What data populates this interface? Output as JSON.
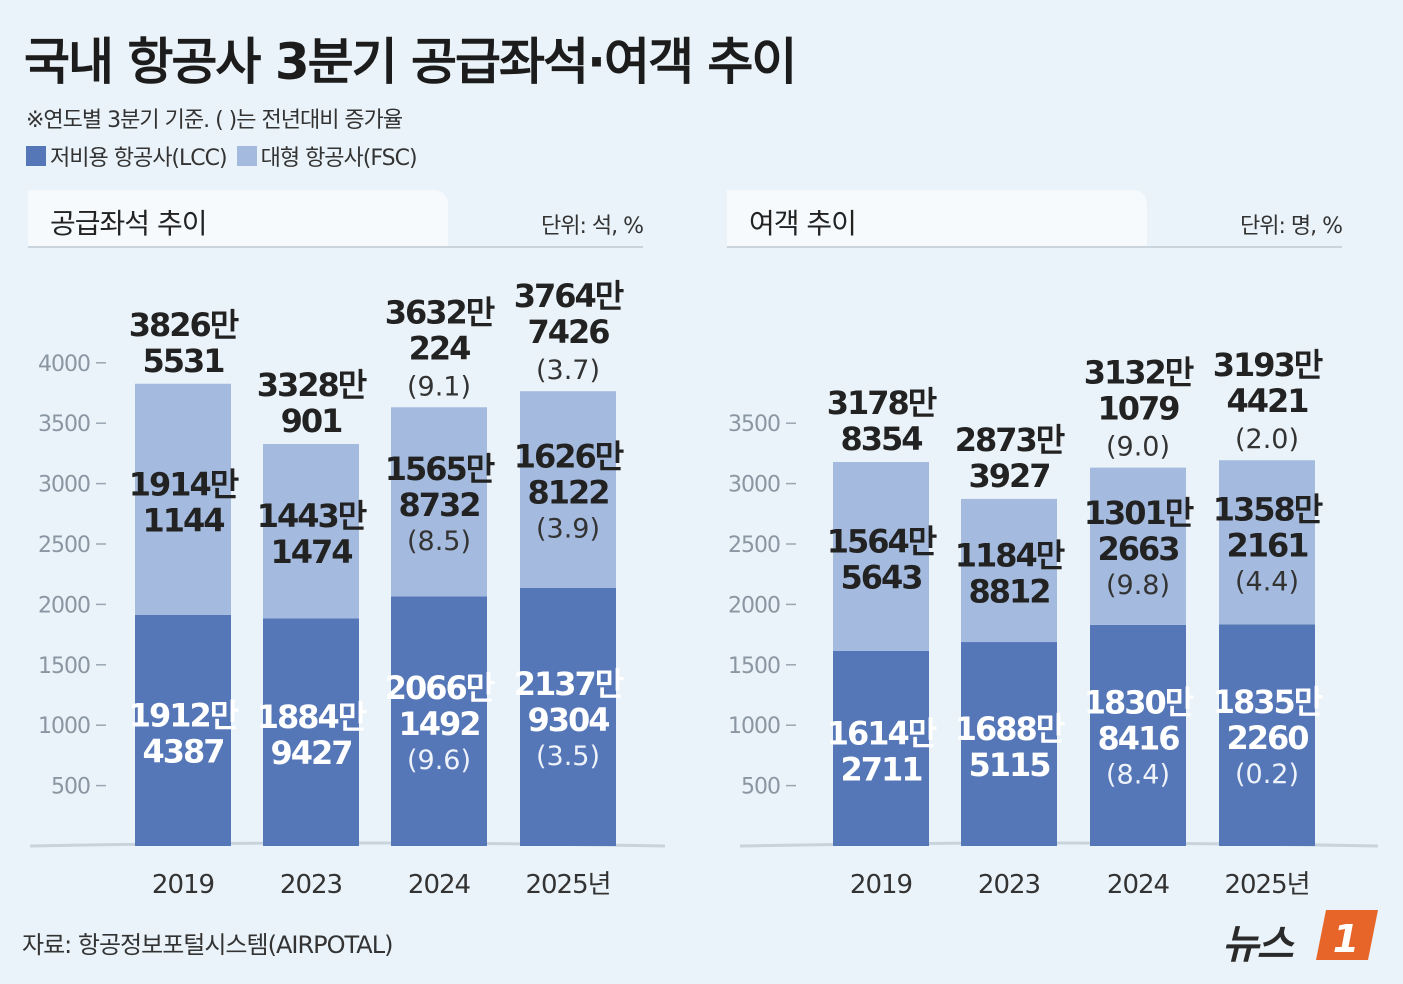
{
  "header": {
    "title": "국내 항공사 3분기 공급좌석·여객 추이",
    "subtitle": "※연도별 3분기 기준.  ( )는 전년대비 증가율"
  },
  "legend": [
    {
      "label": "저비용 항공사(LCC)",
      "color": "#5577b7"
    },
    {
      "label": "대형 항공사(FSC)",
      "color": "#a4bbdf"
    }
  ],
  "panels": [
    {
      "title": "공급좌석 추이",
      "unit": "단위: 석, %"
    },
    {
      "title": "여객 추이",
      "unit": "단위: 명, %"
    }
  ],
  "footer": {
    "source": "자료: 항공정보포털시스템(AIRPOTAL)",
    "logo_text": "뉴스",
    "logo_mark": "1"
  },
  "chart_data": [
    {
      "type": "bar",
      "stacked": true,
      "title": "공급좌석 추이",
      "unit": "단위: 석, %",
      "categories": [
        "2019",
        "2023",
        "2024",
        "2025년"
      ],
      "ylim": [
        0,
        4000
      ],
      "yticks": [
        500,
        1000,
        1500,
        2000,
        2500,
        3000,
        3500,
        4000
      ],
      "series": [
        {
          "name": "저비용 항공사(LCC)",
          "color": "#5577b7",
          "values": [
            1912.4387,
            1884.9427,
            2066.1492,
            2137.9304
          ],
          "labels": [
            [
              "1912만",
              "4387"
            ],
            [
              "1884만",
              "9427"
            ],
            [
              "2066만",
              "1492"
            ],
            [
              "2137만",
              "9304"
            ]
          ],
          "growth": [
            "",
            "",
            "(9.6)",
            "(3.5)"
          ]
        },
        {
          "name": "대형 항공사(FSC)",
          "color": "#a4bbdf",
          "values": [
            1914.1144,
            1443.1474,
            1565.8732,
            1626.8122
          ],
          "labels": [
            [
              "1914만",
              "1144"
            ],
            [
              "1443만",
              "1474"
            ],
            [
              "1565만",
              "8732"
            ],
            [
              "1626만",
              "8122"
            ]
          ],
          "growth": [
            "",
            "",
            "(8.5)",
            "(3.9)"
          ]
        }
      ],
      "totals": [
        3826.5531,
        3328.0901,
        3632.0224,
        3764.7426
      ],
      "total_labels": [
        [
          "3826만",
          "5531"
        ],
        [
          "3328만",
          "901"
        ],
        [
          "3632만",
          "224"
        ],
        [
          "3764만",
          "7426"
        ]
      ],
      "total_growth": [
        "",
        "",
        "(9.1)",
        "(3.7)"
      ]
    },
    {
      "type": "bar",
      "stacked": true,
      "title": "여객 추이",
      "unit": "단위: 명, %",
      "categories": [
        "2019",
        "2023",
        "2024",
        "2025년"
      ],
      "ylim": [
        0,
        4000
      ],
      "yticks": [
        500,
        1000,
        1500,
        2000,
        2500,
        3000,
        3500
      ],
      "series": [
        {
          "name": "저비용 항공사(LCC)",
          "color": "#5577b7",
          "values": [
            1614.2711,
            1688.5115,
            1830.8416,
            1835.226
          ],
          "labels": [
            [
              "1614만",
              "2711"
            ],
            [
              "1688만",
              "5115"
            ],
            [
              "1830만",
              "8416"
            ],
            [
              "1835만",
              "2260"
            ]
          ],
          "growth": [
            "",
            "",
            "(8.4)",
            "(0.2)"
          ]
        },
        {
          "name": "대형 항공사(FSC)",
          "color": "#a4bbdf",
          "values": [
            1564.5643,
            1184.8812,
            1301.2663,
            1358.2161
          ],
          "labels": [
            [
              "1564만",
              "5643"
            ],
            [
              "1184만",
              "8812"
            ],
            [
              "1301만",
              "2663"
            ],
            [
              "1358만",
              "2161"
            ]
          ],
          "growth": [
            "",
            "",
            "(9.8)",
            "(4.4)"
          ]
        }
      ],
      "totals": [
        3178.8354,
        2873.3927,
        3132.1079,
        3193.4421
      ],
      "total_labels": [
        [
          "3178만",
          "8354"
        ],
        [
          "2873만",
          "3927"
        ],
        [
          "3132만",
          "1079"
        ],
        [
          "3193만",
          "4421"
        ]
      ],
      "total_growth": [
        "",
        "",
        "(9.0)",
        "(2.0)"
      ]
    }
  ]
}
